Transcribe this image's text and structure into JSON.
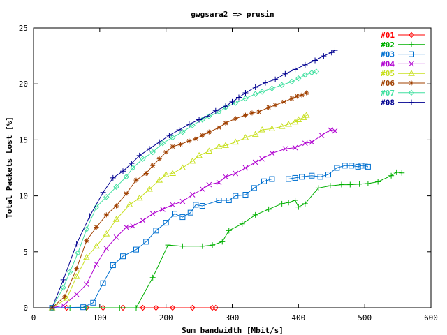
{
  "chart_data": {
    "type": "line",
    "title": "gwgsara2 => prusin",
    "xlabel": "Sum bandwidth [Mbit/s]",
    "ylabel": "Total Packets Lost [%]",
    "xlim": [
      0,
      600
    ],
    "ylim": [
      0,
      25
    ],
    "xticks": [
      0,
      100,
      200,
      300,
      400,
      500,
      600
    ],
    "yticks": [
      0,
      5,
      10,
      15,
      20,
      25
    ],
    "grid": false,
    "legend_position": "top-right",
    "series": [
      {
        "name": "#01",
        "color": "#ff0000",
        "marker": "diamond",
        "x": [
          28,
          50,
          80,
          105,
          135,
          165,
          185,
          210,
          240,
          270,
          275
        ],
        "y": [
          0,
          0,
          0,
          0,
          0,
          0,
          0,
          0,
          0,
          0,
          0
        ]
      },
      {
        "name": "#02",
        "color": "#00b000",
        "marker": "plus",
        "x": [
          28,
          55,
          80,
          105,
          130,
          155,
          180,
          203,
          225,
          255,
          270,
          285,
          295,
          315,
          335,
          355,
          375,
          385,
          395,
          400,
          410,
          430,
          448,
          465,
          478,
          492,
          505,
          520,
          540,
          548,
          556
        ],
        "y": [
          0,
          0,
          0,
          0,
          0,
          0,
          2.7,
          5.6,
          5.5,
          5.5,
          5.6,
          5.9,
          6.9,
          7.5,
          8.3,
          8.8,
          9.3,
          9.4,
          9.6,
          9.0,
          9.3,
          10.7,
          10.9,
          11.0,
          11.0,
          11.05,
          11.1,
          11.25,
          11.8,
          12.1,
          12.05
        ]
      },
      {
        "name": "#03",
        "color": "#0070d0",
        "marker": "square",
        "x": [
          28,
          75,
          90,
          105,
          120,
          135,
          155,
          170,
          185,
          200,
          213,
          225,
          237,
          245,
          255,
          280,
          295,
          305,
          320,
          333,
          348,
          360,
          385,
          395,
          405,
          420,
          433,
          445,
          458,
          470,
          480,
          490,
          495,
          500,
          505
        ],
        "y": [
          0,
          0.05,
          0.45,
          2.2,
          3.8,
          4.6,
          5.2,
          5.9,
          6.9,
          7.6,
          8.4,
          8.1,
          8.5,
          9.2,
          9.1,
          9.6,
          9.6,
          10.0,
          10.1,
          10.7,
          11.3,
          11.5,
          11.5,
          11.6,
          11.7,
          11.8,
          11.7,
          11.9,
          12.5,
          12.7,
          12.7,
          12.6,
          12.7,
          12.7,
          12.6
        ]
      },
      {
        "name": "#04",
        "color": "#b000d0",
        "marker": "x",
        "x": [
          28,
          45,
          65,
          80,
          95,
          110,
          125,
          140,
          150,
          165,
          180,
          195,
          210,
          225,
          240,
          255,
          265,
          280,
          290,
          305,
          320,
          335,
          345,
          360,
          380,
          395,
          410,
          420,
          435,
          448,
          455
        ],
        "y": [
          0,
          0.2,
          1.2,
          2.1,
          3.9,
          5.3,
          6.3,
          7.2,
          7.3,
          7.8,
          8.4,
          8.8,
          9.2,
          9.5,
          10.1,
          10.6,
          11.0,
          11.2,
          11.7,
          12.0,
          12.5,
          13.0,
          13.3,
          13.8,
          14.2,
          14.3,
          14.7,
          14.8,
          15.4,
          15.9,
          15.8
        ]
      },
      {
        "name": "#05",
        "color": "#c8e020",
        "marker": "triangle",
        "x": [
          28,
          50,
          65,
          80,
          95,
          110,
          125,
          145,
          160,
          175,
          190,
          200,
          210,
          225,
          240,
          250,
          265,
          280,
          290,
          305,
          320,
          335,
          345,
          360,
          375,
          385,
          395,
          400,
          408,
          412
        ],
        "y": [
          0,
          0.8,
          2.8,
          4.5,
          5.5,
          6.6,
          7.9,
          9.2,
          9.8,
          10.6,
          11.4,
          11.9,
          12.0,
          12.5,
          13.1,
          13.6,
          14.0,
          14.4,
          14.5,
          14.8,
          15.2,
          15.5,
          15.9,
          16.0,
          16.2,
          16.4,
          16.6,
          16.8,
          17.0,
          17.2
        ]
      },
      {
        "name": "#07",
        "color": "#40e0a0",
        "marker": "diamond",
        "x": [
          28,
          45,
          55,
          67,
          80,
          95,
          110,
          125,
          140,
          150,
          165,
          180,
          195,
          210,
          225,
          240,
          255,
          265,
          280,
          290,
          305,
          320,
          335,
          345,
          360,
          375,
          390,
          400,
          410,
          420,
          427
        ],
        "y": [
          0,
          1.8,
          3.2,
          4.9,
          7.0,
          9.0,
          9.9,
          10.8,
          11.7,
          12.5,
          13.3,
          13.9,
          14.7,
          15.2,
          15.7,
          16.3,
          16.8,
          17.1,
          17.5,
          17.9,
          18.3,
          18.7,
          19.1,
          19.3,
          19.6,
          19.9,
          20.2,
          20.5,
          20.8,
          21.0,
          21.1
        ]
      },
      {
        "name": "#06",
        "color": "#a04000",
        "marker": "star",
        "x": [
          28,
          47,
          65,
          80,
          95,
          110,
          125,
          140,
          155,
          170,
          180,
          190,
          200,
          210,
          222,
          235,
          245,
          255,
          265,
          280,
          290,
          305,
          320,
          330,
          340,
          355,
          365,
          378,
          390,
          398,
          405,
          412
        ],
        "y": [
          0,
          1.0,
          3.5,
          6.0,
          7.2,
          8.3,
          9.1,
          10.2,
          11.4,
          12.0,
          12.7,
          13.3,
          13.9,
          14.4,
          14.6,
          14.9,
          15.1,
          15.4,
          15.7,
          16.1,
          16.5,
          16.9,
          17.2,
          17.4,
          17.5,
          17.9,
          18.1,
          18.4,
          18.7,
          18.9,
          19.0,
          19.2
        ]
      },
      {
        "name": "#08",
        "color": "#000090",
        "marker": "plus",
        "x": [
          28,
          45,
          65,
          85,
          105,
          120,
          135,
          148,
          160,
          175,
          190,
          205,
          220,
          235,
          250,
          262,
          275,
          290,
          300,
          310,
          320,
          335,
          350,
          365,
          380,
          395,
          410,
          425,
          438,
          450,
          455
        ],
        "y": [
          0,
          2.5,
          5.7,
          8.2,
          10.3,
          11.6,
          12.2,
          12.9,
          13.6,
          14.2,
          14.8,
          15.4,
          15.9,
          16.4,
          16.8,
          17.1,
          17.6,
          18.0,
          18.4,
          18.8,
          19.2,
          19.7,
          20.1,
          20.4,
          20.9,
          21.3,
          21.7,
          22.1,
          22.5,
          22.8,
          23.0
        ]
      }
    ]
  }
}
